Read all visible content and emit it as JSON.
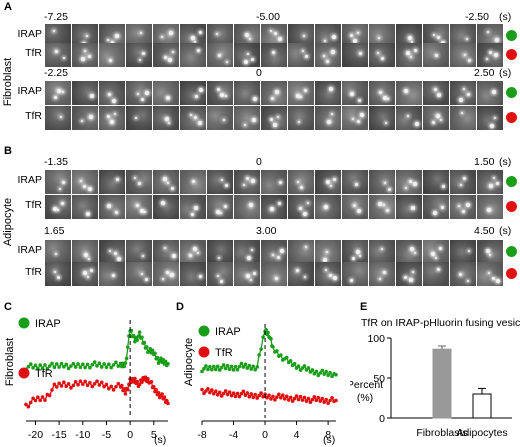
{
  "panels": {
    "A": {
      "letter": "A",
      "cell": "Fibroblast",
      "blocks": [
        {
          "times": [
            "-7.25",
            "-5.00",
            "-2.50"
          ],
          "unit": "(s)"
        },
        {
          "times": [
            "-2.25",
            "0",
            "2.50"
          ],
          "unit": "(s)"
        }
      ]
    },
    "B": {
      "letter": "B",
      "cell": "Adipocyte",
      "blocks": [
        {
          "times": [
            "-1.35",
            "0",
            "1.50"
          ],
          "unit": "(s)"
        },
        {
          "times": [
            "1.65",
            "3.00",
            "4.50"
          ],
          "unit": "(s)"
        }
      ]
    },
    "C": {
      "letter": "C",
      "cell": "Fibroblast"
    },
    "D": {
      "letter": "D",
      "cell": "Adipocyte"
    },
    "E": {
      "letter": "E"
    }
  },
  "row_labels": {
    "irap": "IRAP",
    "tfr": "TfR"
  },
  "colors": {
    "irap": "#1a9e1a",
    "tfr": "#e01010",
    "bar_fill": "#999999"
  },
  "chart_data": [
    {
      "type": "line",
      "panel": "C",
      "title": "",
      "xlabel": "(s)",
      "ylabel": "Fibroblast",
      "xlim": [
        -22,
        8
      ],
      "xticks": [
        "-20",
        "-15",
        "-10",
        "-5",
        "0",
        "5"
      ],
      "xtick_values": [
        -20,
        -15,
        -10,
        -5,
        0,
        5
      ],
      "legend": [
        "IRAP",
        "TfR"
      ],
      "series": [
        {
          "name": "IRAP",
          "x": [
            -22,
            -20,
            -18,
            -16,
            -14,
            -12,
            -10,
            -8,
            -6,
            -4,
            -2,
            -1,
            0,
            1,
            2,
            3,
            4,
            5,
            6,
            7,
            8
          ],
          "y": [
            0.55,
            0.54,
            0.56,
            0.55,
            0.57,
            0.55,
            0.56,
            0.57,
            0.56,
            0.57,
            0.56,
            0.58,
            0.95,
            0.85,
            0.9,
            0.8,
            0.72,
            0.7,
            0.62,
            0.6,
            0.58
          ]
        },
        {
          "name": "TfR",
          "x": [
            -22,
            -20,
            -18,
            -16,
            -14,
            -12,
            -10,
            -8,
            -6,
            -4,
            -2,
            -1,
            0,
            1,
            2,
            3,
            4,
            5,
            6,
            7,
            8
          ],
          "y": [
            0.12,
            0.18,
            0.2,
            0.32,
            0.36,
            0.34,
            0.37,
            0.36,
            0.35,
            0.32,
            0.33,
            0.27,
            0.38,
            0.4,
            0.35,
            0.42,
            0.4,
            0.3,
            0.25,
            0.2,
            0.14
          ]
        }
      ]
    },
    {
      "type": "line",
      "panel": "D",
      "title": "",
      "xlabel": "(s)",
      "ylabel": "Adipocyte",
      "xlim": [
        -8,
        9
      ],
      "xticks": [
        "-8",
        "-4",
        "0",
        "4",
        "8"
      ],
      "xtick_values": [
        -8,
        -4,
        0,
        4,
        8
      ],
      "legend": [
        "IRAP",
        "TfR"
      ],
      "series": [
        {
          "name": "IRAP",
          "x": [
            -8,
            -7,
            -6,
            -5,
            -4,
            -3,
            -2,
            -1,
            0,
            0.5,
            1,
            2,
            3,
            4,
            5,
            6,
            7,
            8,
            9
          ],
          "y": [
            0.55,
            0.55,
            0.57,
            0.56,
            0.56,
            0.58,
            0.57,
            0.57,
            1.0,
            0.95,
            0.78,
            0.7,
            0.63,
            0.58,
            0.55,
            0.52,
            0.5,
            0.49,
            0.48
          ]
        },
        {
          "name": "TfR",
          "x": [
            -8,
            -7,
            -6,
            -5,
            -4,
            -3,
            -2,
            -1,
            0,
            1,
            2,
            3,
            4,
            5,
            6,
            7,
            8,
            9
          ],
          "y": [
            0.3,
            0.28,
            0.27,
            0.26,
            0.25,
            0.26,
            0.24,
            0.24,
            0.23,
            0.22,
            0.22,
            0.21,
            0.2,
            0.2,
            0.19,
            0.19,
            0.18,
            0.18
          ]
        }
      ]
    },
    {
      "type": "bar",
      "panel": "E",
      "title": "TfR on IRAP-pHluorin fusing vesicles",
      "categories": [
        "Fibroblasts",
        "Adipocytes"
      ],
      "values": [
        86,
        30
      ],
      "errors": [
        4,
        7
      ],
      "ylabel": "Percent (%)",
      "ylim": [
        0,
        100
      ],
      "yticks": [
        "0",
        "50",
        "100"
      ],
      "ytick_values": [
        0,
        50,
        100
      ]
    }
  ]
}
